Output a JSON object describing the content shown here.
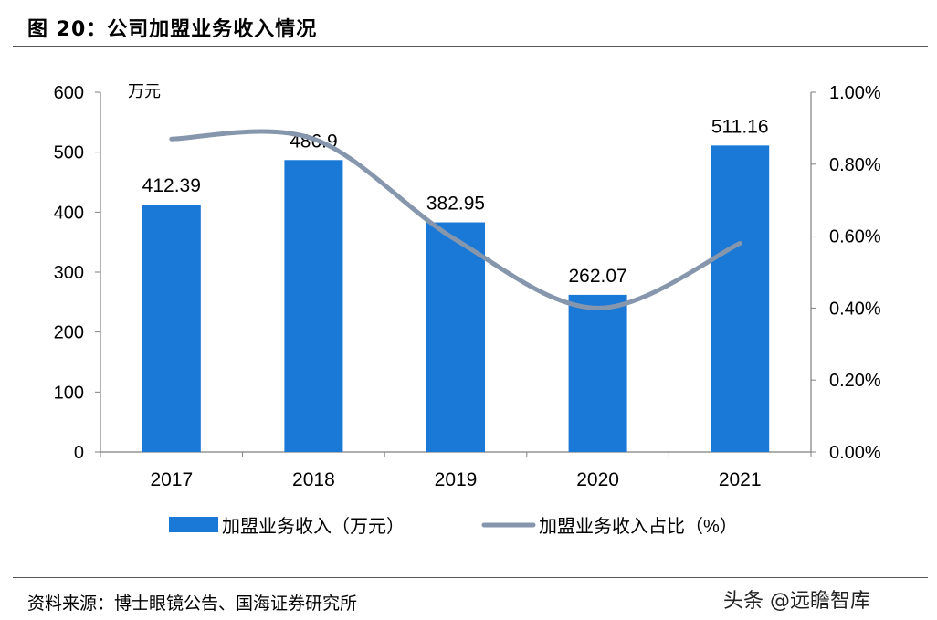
{
  "figure_title": "图 20：公司加盟业务收入情况",
  "source_note": "资料来源：博士眼镜公告、国海证券研究所",
  "watermark": "头条 @远瞻智库",
  "colors": {
    "bar": "#1a78d6",
    "line": "#8696ad",
    "axis": "#7f7f7f"
  },
  "chart_data": {
    "type": "bar",
    "categories": [
      "2017",
      "2018",
      "2019",
      "2020",
      "2021"
    ],
    "series": [
      {
        "name": "加盟业务收入（万元）",
        "type": "bar",
        "axis": "left",
        "values": [
          412.39,
          486.9,
          382.95,
          262.07,
          511.16
        ],
        "labels": [
          "412.39",
          "486.9",
          "382.95",
          "262.07",
          "511.16"
        ]
      },
      {
        "name": "加盟业务收入占比（%）",
        "type": "line",
        "axis": "right",
        "smooth": true,
        "values": [
          0.87,
          0.87,
          0.59,
          0.4,
          0.58
        ]
      }
    ],
    "left_axis": {
      "unit": "万元",
      "min": 0,
      "max": 600,
      "ticks": [
        "0",
        "100",
        "200",
        "300",
        "400",
        "500",
        "600"
      ]
    },
    "right_axis": {
      "min": 0,
      "max": 1.0,
      "ticks": [
        "0.00%",
        "0.20%",
        "0.40%",
        "0.60%",
        "0.80%",
        "1.00%"
      ]
    },
    "legend_position": "bottom",
    "grid": false
  }
}
